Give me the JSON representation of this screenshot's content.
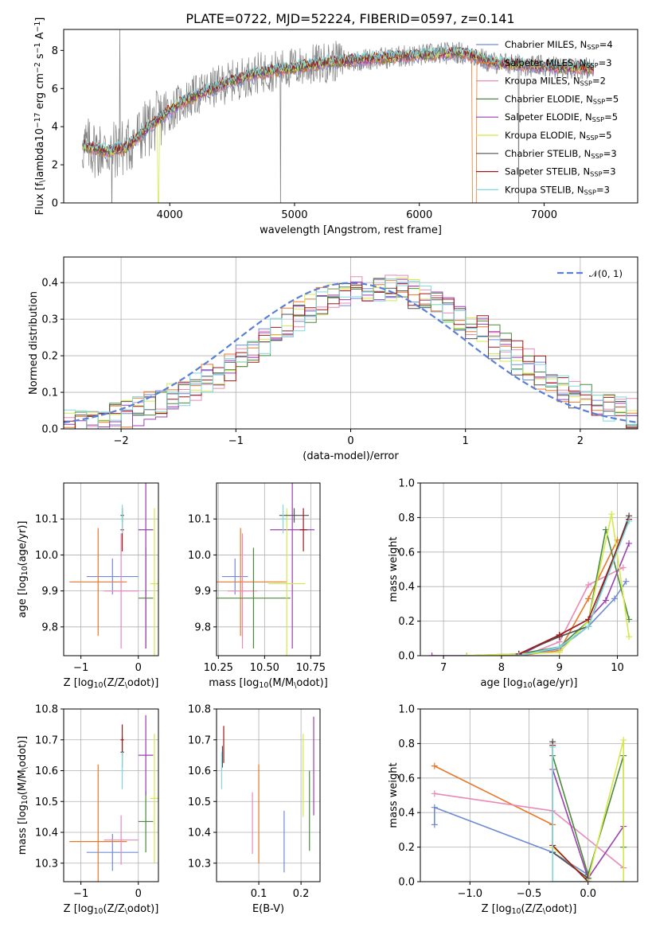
{
  "figure_title": "PLATE=0722, MJD=52224, FIBERID=0597, z=0.141",
  "colors": {
    "Chabrier MILES": "#6f8bd6",
    "Salpeter MILES": "#e87828",
    "Kroupa MILES": "#e889b8",
    "Chabrier ELODIE": "#4a8a3c",
    "Salpeter ELODIE": "#9a3fb0",
    "Kroupa ELODIE": "#d4e84a",
    "Chabrier STELIB": "#505050",
    "Salpeter STELIB": "#a01818",
    "Kroupa STELIB": "#7fd8dc",
    "data": "#808080",
    "normal": "#5a7fd8"
  },
  "chart_data": [
    {
      "id": "spectrum",
      "type": "line",
      "title": "PLATE=0722, MJD=52224, FIBERID=0597, z=0.141",
      "xlabel": "wavelength [Angstrom, rest frame]",
      "ylabel": "Flux [f$_\\lambda$10$^{-17}$ erg cm$^{-2}$ s$^{-1}$ A$^{-1}$]",
      "xlim": [
        3150,
        7750
      ],
      "ylim": [
        0,
        9.1
      ],
      "xticks": [
        4000,
        5000,
        6000,
        7000
      ],
      "yticks": [
        0,
        2,
        4,
        6,
        8
      ],
      "legend_position": "upper right",
      "legend": [
        {
          "label": "Chabrier MILES, N$_{SSP}$=4",
          "series": "Chabrier MILES"
        },
        {
          "label": "Salpeter MILES, N$_{SSP}$=3",
          "series": "Salpeter MILES"
        },
        {
          "label": "Kroupa MILES, N$_{SSP}$=2",
          "series": "Kroupa MILES"
        },
        {
          "label": "Chabrier ELODIE, N$_{SSP}$=5",
          "series": "Chabrier ELODIE"
        },
        {
          "label": "Salpeter ELODIE, N$_{SSP}$=5",
          "series": "Salpeter ELODIE"
        },
        {
          "label": "Kroupa ELODIE, N$_{SSP}$=5",
          "series": "Kroupa ELODIE"
        },
        {
          "label": "Chabrier STELIB, N$_{SSP}$=3",
          "series": "Chabrier STELIB"
        },
        {
          "label": "Salpeter STELIB, N$_{SSP}$=3",
          "series": "Salpeter STELIB"
        },
        {
          "label": "Kroupa STELIB, N$_{SSP}$=3",
          "series": "Kroupa STELIB"
        }
      ],
      "continuum": {
        "x": [
          3300,
          3500,
          3650,
          3800,
          3950,
          4100,
          4300,
          4500,
          4700,
          4900,
          5100,
          5300,
          5500,
          5700,
          5900,
          6100,
          6300,
          6450,
          6550,
          6700,
          6900,
          7100,
          7300,
          7400
        ],
        "y": [
          3.0,
          2.7,
          2.9,
          3.8,
          4.6,
          5.3,
          5.9,
          6.4,
          6.8,
          7.0,
          7.2,
          7.4,
          7.5,
          7.6,
          7.7,
          7.8,
          7.9,
          7.7,
          7.4,
          7.3,
          7.2,
          7.1,
          7.1,
          7.0
        ]
      }
    },
    {
      "id": "residuals",
      "type": "histogram",
      "xlabel": "(data-model)/error",
      "ylabel": "Normed distribution",
      "xlim": [
        -2.5,
        2.5
      ],
      "ylim": [
        0,
        0.47
      ],
      "xticks": [
        -2,
        -1,
        0,
        1,
        2
      ],
      "yticks": [
        0.0,
        0.1,
        0.2,
        0.3,
        0.4
      ],
      "legend_position": "upper right",
      "legend": [
        {
          "label": "$\\mathcal{N}(0,1)$",
          "series": "normal"
        }
      ],
      "bin_width": 0.1
    },
    {
      "id": "age_vs_Z",
      "type": "errorbar",
      "xlabel": "Z [log$_{10}$(Z/Z$_\\odot$)]",
      "ylabel": "age  [log$_{10}$($age/yr$)]",
      "xlim": [
        -1.3,
        0.35
      ],
      "ylim": [
        9.72,
        10.2
      ],
      "xticks": [
        -1,
        0
      ],
      "yticks": [
        9.8,
        9.9,
        10.0,
        10.1
      ],
      "points": [
        {
          "series": "Chabrier MILES",
          "x": -0.45,
          "xerr": 0.45,
          "y": 9.94,
          "yerr": 0.05
        },
        {
          "series": "Salpeter MILES",
          "x": -0.7,
          "xerr": 0.5,
          "y": 9.925,
          "yerr": 0.15
        },
        {
          "series": "Kroupa MILES",
          "x": -0.3,
          "xerr": 0.3,
          "y": 9.9,
          "yerr": 0.16
        },
        {
          "series": "Chabrier ELODIE",
          "x": 0.13,
          "xerr": 0.13,
          "y": 9.88,
          "yerr": 0.14
        },
        {
          "series": "Salpeter ELODIE",
          "x": 0.13,
          "xerr": 0.13,
          "y": 10.07,
          "yerr": 0.33
        },
        {
          "series": "Kroupa ELODIE",
          "x": 0.28,
          "xerr": 0.07,
          "y": 9.92,
          "yerr": 0.21
        },
        {
          "series": "Chabrier STELIB",
          "x": -0.28,
          "xerr": 0.03,
          "y": 10.11,
          "yerr": 0.02
        },
        {
          "series": "Salpeter STELIB",
          "x": -0.28,
          "xerr": 0.03,
          "y": 10.07,
          "yerr": 0.06
        },
        {
          "series": "Kroupa STELIB",
          "x": -0.28,
          "xerr": 0.03,
          "y": 10.1,
          "yerr": 0.04
        }
      ]
    },
    {
      "id": "age_vs_mass",
      "type": "errorbar",
      "xlabel": "mass [log$_{10}$($M/M_\\odot$)]",
      "ylabel": "",
      "xlim": [
        10.24,
        10.8
      ],
      "ylim": [
        9.72,
        10.2
      ],
      "xticks": [
        10.25,
        10.5,
        10.75
      ],
      "yticks": [
        9.8,
        9.9,
        10.0,
        10.1
      ],
      "points": [
        {
          "series": "Chabrier MILES",
          "x": 10.34,
          "xerr": 0.07,
          "y": 9.94,
          "yerr": 0.05
        },
        {
          "series": "Salpeter MILES",
          "x": 10.37,
          "xerr": 0.25,
          "y": 9.925,
          "yerr": 0.15
        },
        {
          "series": "Kroupa MILES",
          "x": 10.38,
          "xerr": 0.08,
          "y": 9.9,
          "yerr": 0.16
        },
        {
          "series": "Chabrier ELODIE",
          "x": 10.44,
          "xerr": 0.2,
          "y": 9.88,
          "yerr": 0.14
        },
        {
          "series": "Salpeter ELODIE",
          "x": 10.65,
          "xerr": 0.12,
          "y": 10.07,
          "yerr": 0.33
        },
        {
          "series": "Kroupa ELODIE",
          "x": 10.62,
          "xerr": 0.1,
          "y": 9.92,
          "yerr": 0.21
        },
        {
          "series": "Chabrier STELIB",
          "x": 10.66,
          "xerr": 0.08,
          "y": 10.11,
          "yerr": 0.02
        },
        {
          "series": "Salpeter STELIB",
          "x": 10.71,
          "xerr": 0.02,
          "y": 10.07,
          "yerr": 0.06
        },
        {
          "series": "Kroupa STELIB",
          "x": 10.6,
          "xerr": 0.02,
          "y": 10.1,
          "yerr": 0.04
        }
      ]
    },
    {
      "id": "mass_weight_vs_age",
      "type": "line",
      "xlabel": "age  [log$_{10}$($age/yr$)]",
      "ylabel": "mass weight",
      "xlim": [
        6.6,
        10.35
      ],
      "ylim": [
        0,
        1.0
      ],
      "xticks": [
        7,
        8,
        9,
        10
      ],
      "yticks": [
        0.0,
        0.2,
        0.4,
        0.6,
        0.8,
        1.0
      ],
      "series": [
        {
          "name": "Chabrier MILES",
          "x": [
            8.3,
            9.0,
            9.5,
            9.95,
            10.15
          ],
          "y": [
            0.0,
            0.04,
            0.17,
            0.33,
            0.43
          ]
        },
        {
          "name": "Salpeter MILES",
          "x": [
            8.3,
            9.0,
            9.5,
            10.0
          ],
          "y": [
            0.0,
            0.03,
            0.33,
            0.67
          ]
        },
        {
          "name": "Kroupa MILES",
          "x": [
            8.4,
            9.0,
            9.5,
            10.1
          ],
          "y": [
            0.0,
            0.08,
            0.41,
            0.51
          ]
        },
        {
          "name": "Chabrier ELODIE",
          "x": [
            7.4,
            8.3,
            9.0,
            9.5,
            9.8,
            10.2
          ],
          "y": [
            0.0,
            0.01,
            0.05,
            0.2,
            0.73,
            0.21
          ]
        },
        {
          "name": "Salpeter ELODIE",
          "x": [
            6.8,
            8.3,
            9.0,
            9.5,
            9.8,
            10.2
          ],
          "y": [
            0.0,
            0.0,
            0.12,
            0.21,
            0.32,
            0.65
          ]
        },
        {
          "name": "Kroupa ELODIE",
          "x": [
            7.4,
            8.3,
            9.0,
            9.5,
            9.9,
            10.2
          ],
          "y": [
            0.0,
            0.01,
            0.02,
            0.2,
            0.82,
            0.11
          ]
        },
        {
          "name": "Chabrier STELIB",
          "x": [
            8.3,
            9.0,
            9.5,
            10.2
          ],
          "y": [
            0.01,
            0.11,
            0.17,
            0.81
          ]
        },
        {
          "name": "Salpeter STELIB",
          "x": [
            8.3,
            9.0,
            9.5,
            10.2
          ],
          "y": [
            0.01,
            0.12,
            0.21,
            0.79
          ]
        },
        {
          "name": "Kroupa STELIB",
          "x": [
            8.3,
            9.0,
            9.5,
            10.2
          ],
          "y": [
            0.0,
            0.05,
            0.17,
            0.78
          ]
        }
      ]
    },
    {
      "id": "mass_vs_Z",
      "type": "errorbar",
      "xlabel": "Z [log$_{10}$(Z/Z$_\\odot$)]",
      "ylabel": "mass [log$_{10}$($M/M_\\odot$)]",
      "xlim": [
        -1.3,
        0.35
      ],
      "ylim": [
        10.24,
        10.8
      ],
      "xticks": [
        -1,
        0
      ],
      "yticks": [
        10.3,
        10.4,
        10.5,
        10.6,
        10.7,
        10.8
      ],
      "points": [
        {
          "series": "Chabrier MILES",
          "x": -0.45,
          "xerr": 0.45,
          "y": 10.335,
          "yerr": 0.06
        },
        {
          "series": "Salpeter MILES",
          "x": -0.7,
          "xerr": 0.5,
          "y": 10.37,
          "yerr": 0.25
        },
        {
          "series": "Kroupa MILES",
          "x": -0.3,
          "xerr": 0.3,
          "y": 10.375,
          "yerr": 0.08
        },
        {
          "series": "Chabrier ELODIE",
          "x": 0.13,
          "xerr": 0.13,
          "y": 10.435,
          "yerr": 0.1
        },
        {
          "series": "Salpeter ELODIE",
          "x": 0.13,
          "xerr": 0.13,
          "y": 10.65,
          "yerr": 0.13
        },
        {
          "series": "Kroupa ELODIE",
          "x": 0.28,
          "xerr": 0.07,
          "y": 10.51,
          "yerr": 0.21
        },
        {
          "series": "Chabrier STELIB",
          "x": -0.28,
          "xerr": 0.03,
          "y": 10.66,
          "yerr": 0.05
        },
        {
          "series": "Salpeter STELIB",
          "x": -0.28,
          "xerr": 0.03,
          "y": 10.7,
          "yerr": 0.05
        },
        {
          "series": "Kroupa STELIB",
          "x": -0.28,
          "xerr": 0.03,
          "y": 10.6,
          "yerr": 0.06
        }
      ]
    },
    {
      "id": "mass_vs_ebv",
      "type": "errorbar",
      "xlabel": "E(B-V)",
      "ylabel": "",
      "xlim": [
        0.0,
        0.245
      ],
      "ylim": [
        10.24,
        10.8
      ],
      "xticks": [
        0.1,
        0.2
      ],
      "yticks": [
        10.3,
        10.4,
        10.5,
        10.6,
        10.7,
        10.8
      ],
      "points": [
        {
          "series": "Chabrier MILES",
          "x": 0.16,
          "y": 10.37,
          "yerr": 0.1
        },
        {
          "series": "Salpeter MILES",
          "x": 0.1,
          "y": 10.46,
          "yerr": 0.16
        },
        {
          "series": "Kroupa MILES",
          "x": 0.085,
          "y": 10.43,
          "yerr": 0.1
        },
        {
          "series": "Chabrier ELODIE",
          "x": 0.22,
          "y": 10.47,
          "yerr": 0.13
        },
        {
          "series": "Salpeter ELODIE",
          "x": 0.23,
          "y": 10.615,
          "yerr": 0.16
        },
        {
          "series": "Kroupa ELODIE",
          "x": 0.205,
          "y": 10.585,
          "yerr": 0.135
        },
        {
          "series": "Chabrier STELIB",
          "x": 0.014,
          "y": 10.645,
          "yerr": 0.035
        },
        {
          "series": "Salpeter STELIB",
          "x": 0.017,
          "y": 10.685,
          "yerr": 0.06
        },
        {
          "series": "Kroupa STELIB",
          "x": 0.012,
          "y": 10.6,
          "yerr": 0.06
        }
      ]
    },
    {
      "id": "mass_weight_vs_Z",
      "type": "line",
      "xlabel": "Z [log$_{10}$(Z/Z$_\\odot$)]",
      "ylabel": "mass weight",
      "xlim": [
        -1.42,
        0.42
      ],
      "ylim": [
        0,
        1.0
      ],
      "xticks": [
        -1.0,
        -0.5,
        0.0
      ],
      "yticks": [
        0.0,
        0.2,
        0.4,
        0.6,
        0.8,
        1.0
      ],
      "series": [
        {
          "name": "Chabrier MILES",
          "x": [
            -1.3,
            -1.3,
            -0.3,
            0.0
          ],
          "y": [
            0.33,
            0.43,
            0.17,
            0.04
          ]
        },
        {
          "name": "Salpeter MILES",
          "x": [
            -1.3,
            -0.3,
            -0.3
          ],
          "y": [
            0.67,
            0.33,
            0.2
          ]
        },
        {
          "name": "Kroupa MILES",
          "x": [
            -1.3,
            -0.3,
            0.3
          ],
          "y": [
            0.51,
            0.41,
            0.08
          ]
        },
        {
          "name": "Chabrier ELODIE",
          "x": [
            -0.3,
            0.0,
            0.3,
            0.3
          ],
          "y": [
            0.73,
            0.04,
            0.73,
            0.2
          ]
        },
        {
          "name": "Salpeter ELODIE",
          "x": [
            -0.3,
            0.0,
            0.3
          ],
          "y": [
            0.65,
            0.02,
            0.32
          ]
        },
        {
          "name": "Kroupa ELODIE",
          "x": [
            -0.3,
            0.0,
            0.3,
            0.3
          ],
          "y": [
            0.2,
            0.01,
            0.82,
            0.0
          ]
        },
        {
          "name": "Chabrier STELIB",
          "x": [
            -0.3,
            -0.3,
            0.0
          ],
          "y": [
            0.81,
            0.17,
            0.02
          ]
        },
        {
          "name": "Salpeter STELIB",
          "x": [
            -0.3,
            -0.3,
            0.0
          ],
          "y": [
            0.79,
            0.21,
            0.0
          ]
        },
        {
          "name": "Kroupa STELIB",
          "x": [
            -0.3,
            -0.3,
            0.0
          ],
          "y": [
            0.78,
            0.0,
            0.0
          ]
        }
      ]
    }
  ]
}
